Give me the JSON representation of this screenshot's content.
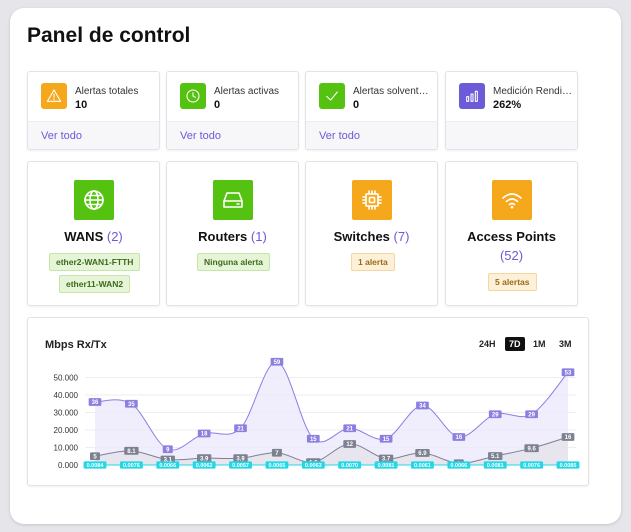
{
  "page": {
    "title": "Panel de control"
  },
  "stats": [
    {
      "label": "Alertas totales",
      "value": "10",
      "link": "Ver todo",
      "icon": "warning-icon",
      "color": "#f6a81c"
    },
    {
      "label": "Alertas activas",
      "value": "0",
      "link": "Ver todo",
      "icon": "clock-icon",
      "color": "#55c212"
    },
    {
      "label": "Alertas solventadas",
      "value": "0",
      "link": "Ver todo",
      "icon": "check-icon",
      "color": "#55c212"
    },
    {
      "label": "Medición Rendimiento",
      "value": "262%",
      "link": "",
      "icon": "bar-chart-icon",
      "color": "#6b5bd6"
    }
  ],
  "devices": [
    {
      "name": "WANS",
      "count": "(2)",
      "icon": "globe-icon",
      "color": "#55c212",
      "tags": [
        "ether2-WAN1-FTTH",
        "ether11-WAN2"
      ],
      "tag_style": "green"
    },
    {
      "name": "Routers",
      "count": "(1)",
      "icon": "router-icon",
      "color": "#55c212",
      "tags": [
        "Ninguna alerta"
      ],
      "tag_style": "green"
    },
    {
      "name": "Switches",
      "count": "(7)",
      "icon": "chip-icon",
      "color": "#f6a81c",
      "tags": [
        "1 alerta"
      ],
      "tag_style": "orange"
    },
    {
      "name": "Access Points",
      "count": "(52)",
      "icon": "wifi-icon",
      "color": "#f6a81c",
      "tags": [
        "5 alertas"
      ],
      "tag_style": "orange"
    }
  ],
  "range_buttons": [
    {
      "label": "24H",
      "active": false
    },
    {
      "label": "7D",
      "active": true
    },
    {
      "label": "1M",
      "active": false
    },
    {
      "label": "3M",
      "active": false
    }
  ],
  "chart_data": {
    "type": "area",
    "title": "Mbps Rx/Tx",
    "ylim": [
      0,
      60000
    ],
    "yticks": [
      "0.000",
      "10.000",
      "20.000",
      "30.000",
      "40.000",
      "50.000"
    ],
    "ytick_values": [
      0,
      10000,
      20000,
      30000,
      40000,
      50000
    ],
    "grid": true,
    "colors": {
      "rx": "#8b7fe0",
      "tx": "#7d8190",
      "tx3": "#23d7e6",
      "fill": "#ece9fb"
    },
    "series": [
      {
        "values": [
          36000,
          35000,
          9000,
          18000,
          21000,
          59000,
          15000,
          21000,
          15000,
          34000,
          16000,
          29000,
          29000,
          53000
        ],
        "labels": [
          "36",
          "35",
          "9",
          "18",
          "21",
          "59",
          "15",
          "21",
          "15",
          "34",
          "16",
          "29",
          "29",
          "53"
        ]
      },
      {
        "values": [
          5000,
          8100,
          3100,
          3900,
          3900,
          7000,
          1600,
          12000,
          3700,
          6900,
          1000,
          5100,
          9600,
          16000
        ],
        "labels": [
          "5",
          "8.1",
          "3.1",
          "3.9",
          "3.9",
          "7",
          "1.6",
          "12",
          "3.7",
          "6.9",
          "1",
          "5.1",
          "9.6",
          "16"
        ]
      },
      {
        "values": [
          84,
          76,
          66,
          62,
          57,
          65,
          63,
          70,
          81,
          61,
          66,
          81,
          76,
          85
        ],
        "labels": [
          "0.0084",
          "0.0076",
          "0.0066",
          "0.0062",
          "0.0057",
          "0.0065",
          "0.0063",
          "0.0070",
          "0.0081",
          "0.0061",
          "0.0066",
          "0.0081",
          "0.0076",
          "0.0085"
        ]
      }
    ]
  }
}
